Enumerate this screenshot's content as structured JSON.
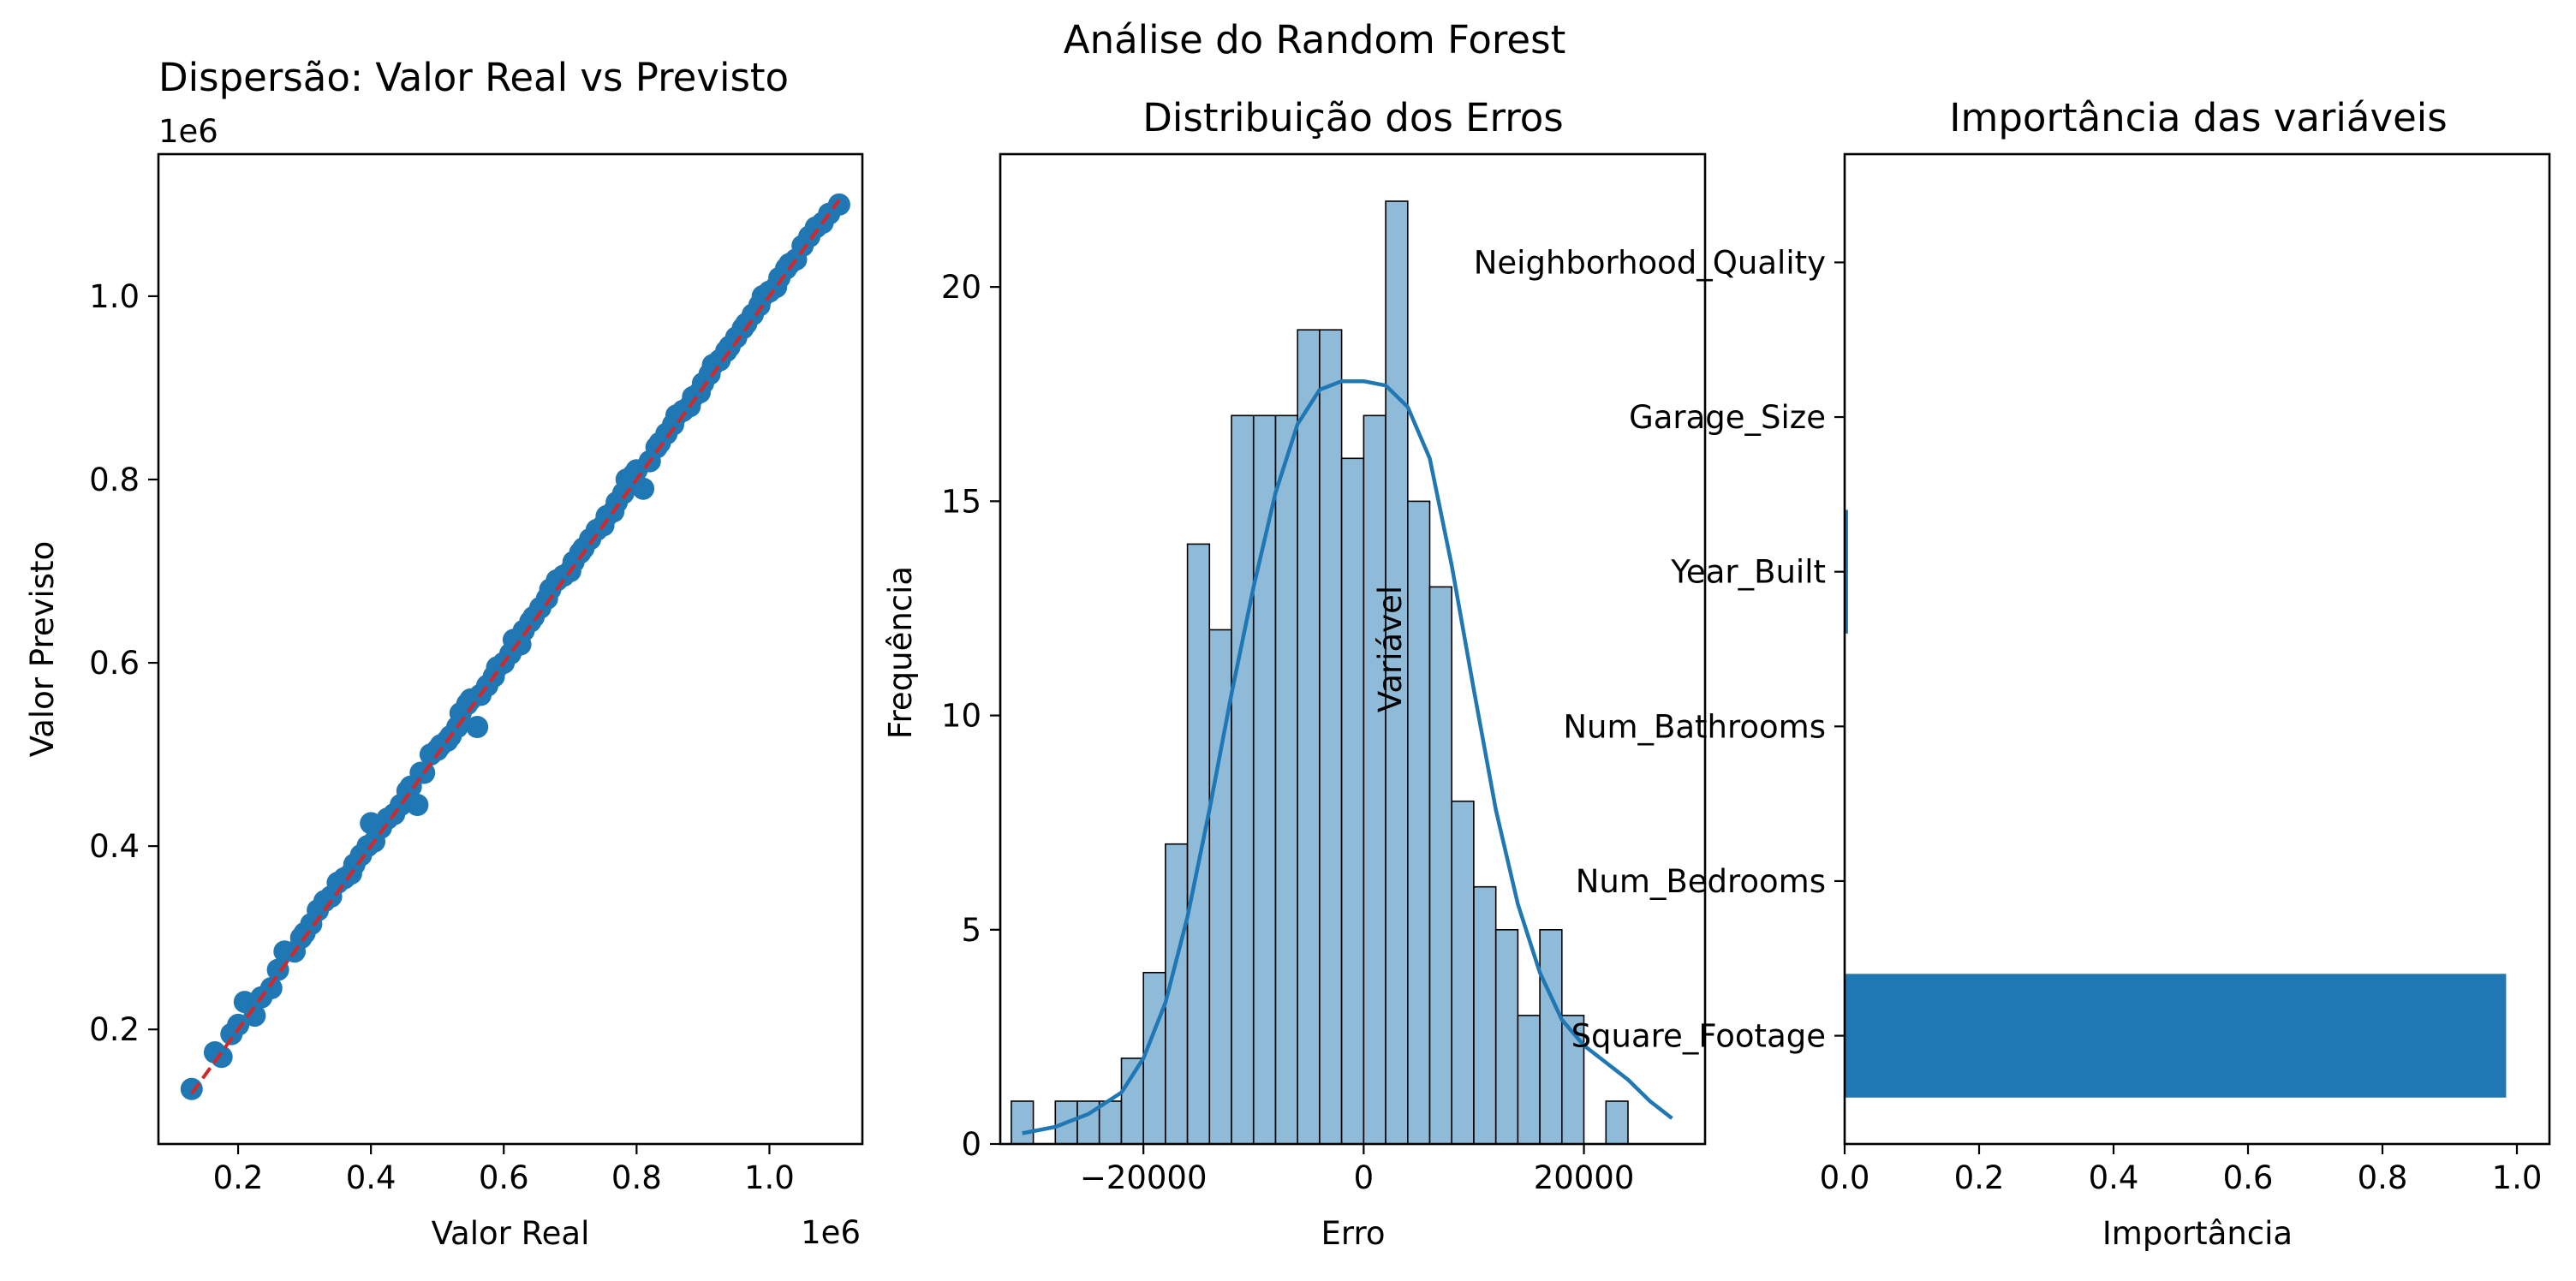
{
  "figure": {
    "suptitle": "Análise do Random Forest"
  },
  "colors": {
    "scatter": "#1f77b4",
    "identity_line": "#d62728",
    "hist_fill": "#8fbbd9",
    "hist_edge": "#000000",
    "kde": "#1f77b4",
    "barh": "#1f77b4"
  },
  "chart_data": [
    {
      "type": "scatter",
      "title": "Dispersão: Valor Real vs Previsto",
      "xlabel": "Valor Real",
      "ylabel": "Valor Previsto",
      "x_offset_text": "1e6",
      "y_offset_text": "1e6",
      "xlim": [
        0.08,
        1.14
      ],
      "ylim": [
        0.075,
        1.155
      ],
      "xticks": [
        0.2,
        0.4,
        0.6,
        0.8,
        1.0
      ],
      "xticklabels": [
        "0.2",
        "0.4",
        "0.6",
        "0.8",
        "1.0"
      ],
      "yticks": [
        0.2,
        0.4,
        0.6,
        0.8,
        1.0
      ],
      "yticklabels": [
        "0.2",
        "0.4",
        "0.6",
        "0.8",
        "1.0"
      ],
      "identity_line": [
        [
          0.13,
          0.13
        ],
        [
          1.105,
          1.105
        ]
      ],
      "points": [
        [
          0.13,
          0.135
        ],
        [
          0.165,
          0.175
        ],
        [
          0.175,
          0.17
        ],
        [
          0.19,
          0.195
        ],
        [
          0.2,
          0.205
        ],
        [
          0.21,
          0.23
        ],
        [
          0.225,
          0.215
        ],
        [
          0.235,
          0.235
        ],
        [
          0.25,
          0.245
        ],
        [
          0.26,
          0.265
        ],
        [
          0.27,
          0.285
        ],
        [
          0.285,
          0.285
        ],
        [
          0.295,
          0.3
        ],
        [
          0.3,
          0.305
        ],
        [
          0.31,
          0.315
        ],
        [
          0.32,
          0.33
        ],
        [
          0.33,
          0.34
        ],
        [
          0.34,
          0.345
        ],
        [
          0.35,
          0.36
        ],
        [
          0.36,
          0.365
        ],
        [
          0.37,
          0.37
        ],
        [
          0.375,
          0.38
        ],
        [
          0.385,
          0.39
        ],
        [
          0.395,
          0.4
        ],
        [
          0.4,
          0.425
        ],
        [
          0.405,
          0.405
        ],
        [
          0.415,
          0.42
        ],
        [
          0.425,
          0.43
        ],
        [
          0.435,
          0.435
        ],
        [
          0.445,
          0.445
        ],
        [
          0.455,
          0.46
        ],
        [
          0.46,
          0.465
        ],
        [
          0.47,
          0.445
        ],
        [
          0.475,
          0.48
        ],
        [
          0.48,
          0.48
        ],
        [
          0.49,
          0.5
        ],
        [
          0.5,
          0.505
        ],
        [
          0.505,
          0.51
        ],
        [
          0.515,
          0.515
        ],
        [
          0.52,
          0.52
        ],
        [
          0.53,
          0.53
        ],
        [
          0.535,
          0.545
        ],
        [
          0.545,
          0.555
        ],
        [
          0.55,
          0.56
        ],
        [
          0.56,
          0.53
        ],
        [
          0.565,
          0.565
        ],
        [
          0.575,
          0.575
        ],
        [
          0.585,
          0.585
        ],
        [
          0.59,
          0.595
        ],
        [
          0.6,
          0.6
        ],
        [
          0.61,
          0.61
        ],
        [
          0.615,
          0.625
        ],
        [
          0.625,
          0.62
        ],
        [
          0.63,
          0.635
        ],
        [
          0.64,
          0.645
        ],
        [
          0.645,
          0.65
        ],
        [
          0.655,
          0.66
        ],
        [
          0.665,
          0.67
        ],
        [
          0.67,
          0.68
        ],
        [
          0.68,
          0.69
        ],
        [
          0.69,
          0.695
        ],
        [
          0.7,
          0.7
        ],
        [
          0.705,
          0.71
        ],
        [
          0.715,
          0.72
        ],
        [
          0.72,
          0.725
        ],
        [
          0.73,
          0.735
        ],
        [
          0.74,
          0.745
        ],
        [
          0.75,
          0.75
        ],
        [
          0.755,
          0.76
        ],
        [
          0.765,
          0.765
        ],
        [
          0.77,
          0.775
        ],
        [
          0.78,
          0.785
        ],
        [
          0.785,
          0.8
        ],
        [
          0.795,
          0.805
        ],
        [
          0.8,
          0.81
        ],
        [
          0.81,
          0.79
        ],
        [
          0.82,
          0.82
        ],
        [
          0.83,
          0.835
        ],
        [
          0.835,
          0.84
        ],
        [
          0.845,
          0.85
        ],
        [
          0.855,
          0.86
        ],
        [
          0.86,
          0.87
        ],
        [
          0.87,
          0.875
        ],
        [
          0.88,
          0.88
        ],
        [
          0.885,
          0.89
        ],
        [
          0.895,
          0.895
        ],
        [
          0.9,
          0.905
        ],
        [
          0.91,
          0.915
        ],
        [
          0.915,
          0.925
        ],
        [
          0.925,
          0.93
        ],
        [
          0.935,
          0.94
        ],
        [
          0.94,
          0.945
        ],
        [
          0.95,
          0.955
        ],
        [
          0.96,
          0.965
        ],
        [
          0.965,
          0.97
        ],
        [
          0.975,
          0.98
        ],
        [
          0.985,
          0.99
        ],
        [
          0.99,
          1.0
        ],
        [
          1.0,
          1.005
        ],
        [
          1.01,
          1.01
        ],
        [
          1.015,
          1.02
        ],
        [
          1.025,
          1.03
        ],
        [
          1.03,
          1.035
        ],
        [
          1.04,
          1.04
        ],
        [
          1.05,
          1.055
        ],
        [
          1.06,
          1.065
        ],
        [
          1.07,
          1.075
        ],
        [
          1.08,
          1.08
        ],
        [
          1.09,
          1.09
        ],
        [
          1.105,
          1.1
        ]
      ]
    },
    {
      "type": "bar",
      "subtype": "histogram_with_kde",
      "title": "Distribuição dos Erros",
      "xlabel": "Erro",
      "ylabel": "Frequência",
      "overlay_text": "Variável",
      "xlim": [
        -33000,
        31000
      ],
      "ylim": [
        0,
        23.1
      ],
      "xticks": [
        -20000,
        0,
        20000
      ],
      "xticklabels": [
        "−20000",
        "0",
        "20000"
      ],
      "yticks": [
        0,
        5,
        10,
        15,
        20
      ],
      "yticklabels": [
        "0",
        "5",
        "10",
        "15",
        "20"
      ],
      "bin_start": -32000,
      "bin_width": 2000,
      "counts": [
        1,
        0,
        1,
        1,
        1,
        2,
        4,
        7,
        14,
        12,
        17,
        17,
        17,
        19,
        19,
        16,
        17,
        22,
        15,
        13,
        8,
        6,
        5,
        3,
        5,
        3,
        0,
        1
      ],
      "kde": {
        "x": [
          -31000,
          -28000,
          -25000,
          -22000,
          -20000,
          -18000,
          -16000,
          -14000,
          -12000,
          -10000,
          -8000,
          -6000,
          -4000,
          -2000,
          0,
          2000,
          4000,
          6000,
          8000,
          10000,
          12000,
          14000,
          16000,
          18000,
          20000,
          22000,
          24000,
          26000,
          28000
        ],
        "y": [
          0.25,
          0.4,
          0.7,
          1.2,
          2.0,
          3.3,
          5.3,
          7.8,
          10.5,
          13.0,
          15.2,
          16.8,
          17.6,
          17.8,
          17.8,
          17.7,
          17.2,
          16.0,
          13.5,
          10.6,
          7.8,
          5.6,
          4.0,
          2.9,
          2.3,
          1.9,
          1.5,
          1.0,
          0.6
        ]
      }
    },
    {
      "type": "bar",
      "orientation": "horizontal",
      "title": "Importância das variáveis",
      "xlabel": "Importância",
      "ylabel": "Variável",
      "xlim": [
        0,
        1.0
      ],
      "xticks": [
        0.0,
        0.2,
        0.4,
        0.6,
        0.8,
        1.0
      ],
      "xticklabels": [
        "0.0",
        "0.2",
        "0.4",
        "0.6",
        "0.8",
        "1.0"
      ],
      "categories": [
        "Square_Footage",
        "Num_Bedrooms",
        "Num_Bathrooms",
        "Year_Built",
        "Garage_Size",
        "Neighborhood_Quality"
      ],
      "values": [
        0.984,
        0.0,
        0.0,
        0.005,
        0.0,
        0.0
      ]
    }
  ]
}
